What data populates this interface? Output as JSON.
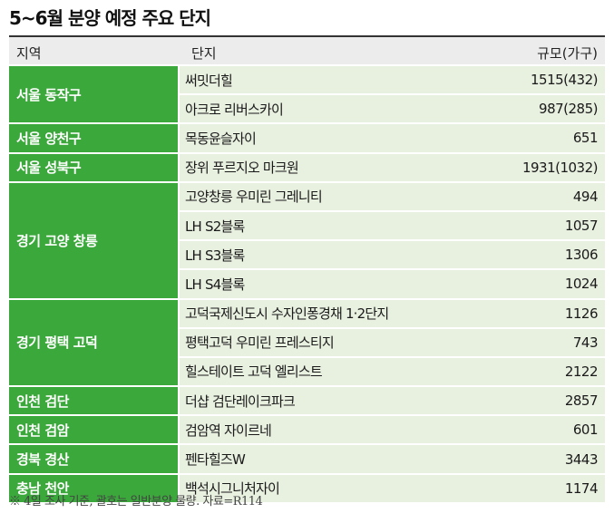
{
  "title": "5~6월 분양 예정 주요 단지",
  "header": {
    "region": "지역",
    "complex": "단지",
    "scale": "규모(가구)"
  },
  "groups": [
    {
      "region": "서울 동작구",
      "rows": [
        {
          "name": "써밋더힐",
          "units": "1515(432)"
        },
        {
          "name": "아크로 리버스카이",
          "units": "987(285)"
        }
      ]
    },
    {
      "region": "서울 양천구",
      "rows": [
        {
          "name": "목동윤슬자이",
          "units": "651"
        }
      ]
    },
    {
      "region": "서울 성북구",
      "rows": [
        {
          "name": "장위 푸르지오 마크원",
          "units": "1931(1032)"
        }
      ]
    },
    {
      "region": "경기 고양 창릉",
      "rows": [
        {
          "name": "고양창릉 우미린 그레니티",
          "units": "494"
        },
        {
          "name": "LH S2블록",
          "units": "1057"
        },
        {
          "name": "LH S3블록",
          "units": "1306"
        },
        {
          "name": "LH S4블록",
          "units": "1024"
        }
      ]
    },
    {
      "region": "경기 평택 고덕",
      "rows": [
        {
          "name": "고덕국제신도시 수자인퐁경채 1·2단지",
          "units": "1126"
        },
        {
          "name": "평택고덕 우미린 프레스티지",
          "units": "743"
        },
        {
          "name": "힐스테이트 고덕 엘리스트",
          "units": "2122"
        }
      ]
    },
    {
      "region": "인천 검단",
      "rows": [
        {
          "name": "더샵 검단레이크파크",
          "units": "2857"
        }
      ]
    },
    {
      "region": "인천 검암",
      "rows": [
        {
          "name": "검암역 자이르네",
          "units": "601"
        }
      ]
    },
    {
      "region": "경북 경산",
      "rows": [
        {
          "name": "펜타힐즈W",
          "units": "3443"
        }
      ]
    },
    {
      "region": "충남 천안",
      "rows": [
        {
          "name": "백석시그니처자이",
          "units": "1174"
        }
      ]
    }
  ],
  "note": "※ 4일 조사 기준, 괄호는 일반분양 물량. 자료=R114",
  "colors": {
    "region_bg": "#3ba83b",
    "row_bg": "#e8f0e0",
    "header_bg": "#ececec"
  }
}
